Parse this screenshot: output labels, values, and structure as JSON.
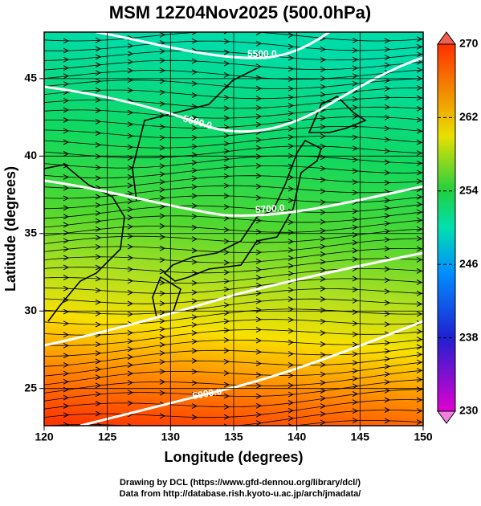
{
  "title": "MSM 12Z04Nov2025 (500.0hPa)",
  "map": {
    "xlabel": "Longitude (degrees)",
    "ylabel": "Latitude  (degrees)",
    "xlim": [
      120,
      150
    ],
    "ylim": [
      22.6,
      48
    ],
    "xticks": [
      120,
      125,
      130,
      135,
      140,
      145,
      150
    ],
    "yticks": [
      25,
      30,
      35,
      40,
      45
    ]
  },
  "colorbar": {
    "lim": [
      230,
      270
    ],
    "ticks": [
      230,
      238,
      246,
      254,
      262,
      270
    ]
  },
  "contour_labels": [
    "5500.0",
    "5600.0",
    "5700.0",
    "5900.0"
  ],
  "footer": [
    "Drawing by DCL (https://www.gfd-dennou.org/library/dcl/)",
    "Data from http://database.rish.kyoto-u.ac.jp/arch/jmadata/"
  ]
}
